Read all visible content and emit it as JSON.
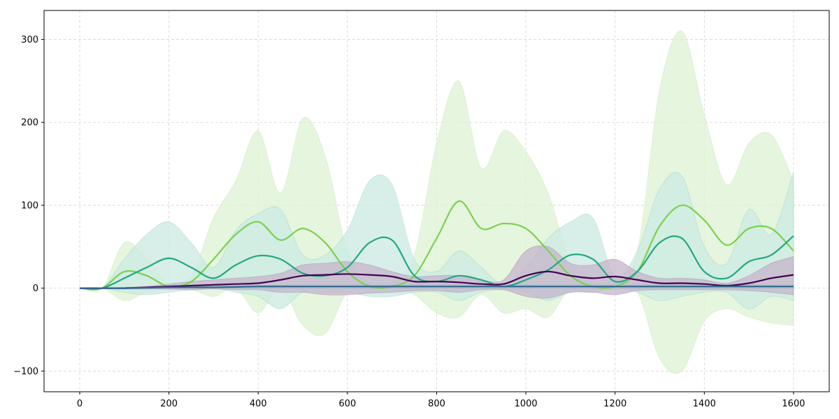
{
  "chart_data": {
    "type": "line",
    "title": "",
    "xlabel": "",
    "ylabel": "",
    "xlim": [
      -80,
      1680
    ],
    "ylim": [
      -125,
      335
    ],
    "x_ticks": [
      0,
      200,
      400,
      600,
      800,
      1000,
      1200,
      1400,
      1600
    ],
    "y_ticks": [
      -100,
      0,
      100,
      200,
      300
    ],
    "x_tick_labels": [
      "0",
      "200",
      "400",
      "600",
      "800",
      "1000",
      "1200",
      "1400",
      "1600"
    ],
    "y_tick_labels": [
      "−100",
      "0",
      "100",
      "200",
      "300"
    ],
    "grid": true,
    "legend": "none",
    "x": [
      0,
      50,
      100,
      150,
      200,
      250,
      300,
      350,
      400,
      450,
      500,
      550,
      600,
      650,
      700,
      750,
      800,
      850,
      900,
      950,
      1000,
      1050,
      1100,
      1150,
      1200,
      1250,
      1300,
      1350,
      1400,
      1450,
      1500,
      1550,
      1600
    ],
    "series": [
      {
        "color": "#ddf2d3",
        "line_color": "#7ad151",
        "mean": [
          0,
          0,
          20,
          15,
          2,
          8,
          35,
          65,
          80,
          58,
          72,
          55,
          20,
          2,
          2,
          15,
          60,
          105,
          72,
          78,
          72,
          45,
          15,
          2,
          2,
          20,
          75,
          100,
          82,
          52,
          72,
          72,
          45
        ],
        "upper": [
          0,
          0,
          55,
          35,
          5,
          15,
          85,
          130,
          190,
          115,
          205,
          160,
          45,
          5,
          5,
          40,
          175,
          250,
          145,
          190,
          165,
          115,
          30,
          5,
          5,
          45,
          240,
          310,
          210,
          125,
          175,
          185,
          130
        ],
        "lower": [
          0,
          0,
          -15,
          -5,
          -2,
          -2,
          -10,
          0,
          -30,
          0,
          -45,
          -55,
          -5,
          -2,
          -2,
          -8,
          -30,
          -35,
          -8,
          -30,
          -25,
          -35,
          0,
          -2,
          -2,
          -5,
          -85,
          -100,
          -40,
          -25,
          -35,
          -42,
          -45
        ]
      },
      {
        "color": "#cbe9e2",
        "line_color": "#22a884",
        "mean": [
          0,
          0,
          12,
          25,
          36,
          25,
          12,
          28,
          39,
          35,
          18,
          15,
          25,
          55,
          58,
          15,
          8,
          15,
          10,
          2,
          10,
          22,
          40,
          35,
          8,
          20,
          55,
          60,
          20,
          12,
          32,
          40,
          63
        ],
        "upper": [
          0,
          0,
          35,
          65,
          80,
          55,
          25,
          70,
          90,
          95,
          40,
          40,
          70,
          130,
          125,
          35,
          20,
          45,
          25,
          5,
          25,
          60,
          80,
          85,
          15,
          45,
          120,
          135,
          50,
          30,
          95,
          65,
          140
        ],
        "lower": [
          0,
          0,
          -5,
          -8,
          -5,
          -2,
          0,
          -5,
          -10,
          -25,
          -5,
          -5,
          -5,
          -10,
          -10,
          -5,
          -5,
          -15,
          -5,
          -2,
          -5,
          -15,
          -5,
          -5,
          0,
          -5,
          -15,
          -10,
          -5,
          -5,
          -25,
          -10,
          -15
        ]
      },
      {
        "color": "#c6b4cb",
        "line_color": "#440154",
        "mean": [
          0,
          0,
          0,
          1,
          2,
          3,
          4,
          5,
          6,
          10,
          15,
          16,
          17,
          16,
          14,
          8,
          8,
          7,
          5,
          5,
          15,
          20,
          15,
          12,
          14,
          10,
          6,
          6,
          5,
          3,
          6,
          12,
          16
        ],
        "upper": [
          0,
          0,
          1,
          2,
          5,
          8,
          10,
          12,
          14,
          18,
          28,
          30,
          32,
          28,
          20,
          14,
          15,
          15,
          10,
          10,
          45,
          50,
          30,
          28,
          35,
          20,
          12,
          12,
          10,
          6,
          15,
          30,
          38
        ],
        "lower": [
          0,
          0,
          -1,
          -1,
          -1,
          -2,
          -1,
          -2,
          -2,
          -5,
          -5,
          -8,
          -8,
          -6,
          -5,
          -3,
          -3,
          -5,
          -2,
          -2,
          -10,
          -12,
          -5,
          -5,
          -8,
          -3,
          -2,
          -2,
          -2,
          -2,
          -3,
          -5,
          -8
        ]
      },
      {
        "color": "#b9c9d4",
        "line_color": "#31688e",
        "mean": [
          0,
          0,
          0,
          0.5,
          1,
          1,
          1,
          1.5,
          2,
          2,
          2,
          2,
          2,
          2,
          2,
          2,
          2,
          2,
          2,
          2,
          2,
          2,
          2,
          2,
          2,
          2,
          2,
          2,
          2,
          2,
          2,
          2,
          2
        ],
        "upper": [
          0,
          0,
          0.5,
          1.5,
          2,
          2.5,
          3,
          3,
          3.5,
          3.5,
          4,
          4,
          4,
          4,
          4,
          4,
          4,
          4,
          4,
          4,
          4,
          4,
          4,
          4,
          4,
          4,
          4,
          4,
          4,
          4,
          4,
          4,
          4
        ],
        "lower": [
          0,
          0,
          -0.5,
          -0.5,
          0,
          0,
          0,
          0,
          0,
          0,
          0,
          0,
          0,
          0,
          0,
          0,
          0,
          0,
          0,
          0,
          0,
          0,
          0,
          0,
          0,
          0,
          0,
          0,
          0,
          0,
          0,
          0,
          0
        ]
      }
    ]
  }
}
